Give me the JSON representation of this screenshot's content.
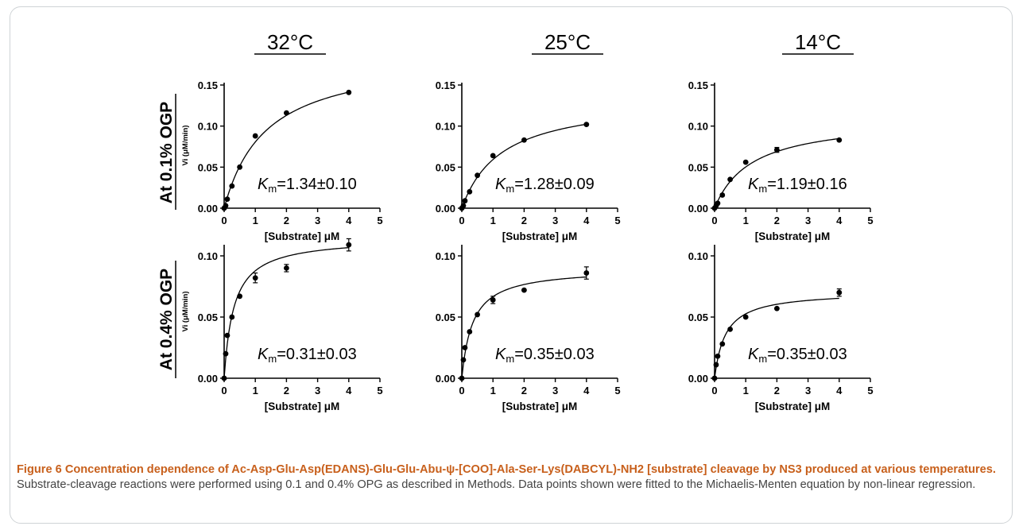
{
  "figure": {
    "column_headers": [
      "32°C",
      "25°C",
      "14°C"
    ],
    "row_labels": [
      "At 0.1% OGP",
      "At 0.4% OGP"
    ],
    "caption_bold": "Figure 6 Concentration dependence of Ac-Asp-Glu-Asp(EDANS)-Glu-Glu-Abu-ψ-[COO]-Ala-Ser-Lys(DABCYL)-NH2 [substrate] cleavage by NS3 produced at various temperatures.",
    "caption_text": " Substrate-cleavage reactions were performed using 0.1 and 0.4% OPG as described in Methods. Data points shown were fitted to the Michaelis-Menten equation by non-linear regression."
  },
  "chart_data": [
    {
      "type": "scatter",
      "row": 0,
      "col": 0,
      "xlabel": "[Substrate] μM",
      "ylabel": "Vi (μM/min)",
      "xlim": [
        0,
        5
      ],
      "ylim": [
        0,
        0.15
      ],
      "xticks": [
        "0",
        "1",
        "2",
        "3",
        "4",
        "5"
      ],
      "yticks": [
        "0.00",
        "0.05",
        "0.10",
        "0.15"
      ],
      "points": [
        {
          "x": 0,
          "y": 0.0
        },
        {
          "x": 0.05,
          "y": 0.003
        },
        {
          "x": 0.1,
          "y": 0.011
        },
        {
          "x": 0.25,
          "y": 0.027
        },
        {
          "x": 0.5,
          "y": 0.05
        },
        {
          "x": 1,
          "y": 0.088
        },
        {
          "x": 2,
          "y": 0.116
        },
        {
          "x": 4,
          "y": 0.141
        }
      ],
      "fit": {
        "vmax": 0.1887,
        "km": 1.34
      },
      "annotation": {
        "prefix": "K",
        "sub": "m",
        "value": "=1.34±0.10"
      }
    },
    {
      "type": "scatter",
      "row": 0,
      "col": 1,
      "xlabel": "[Substrate] μM",
      "ylabel": "",
      "xlim": [
        0,
        5
      ],
      "ylim": [
        0,
        0.15
      ],
      "xticks": [
        "0",
        "1",
        "2",
        "3",
        "4",
        "5"
      ],
      "yticks": [
        "0.00",
        "0.05",
        "0.10",
        "0.15"
      ],
      "points": [
        {
          "x": 0,
          "y": 0.0
        },
        {
          "x": 0.05,
          "y": 0.003
        },
        {
          "x": 0.1,
          "y": 0.009
        },
        {
          "x": 0.25,
          "y": 0.02
        },
        {
          "x": 0.5,
          "y": 0.04
        },
        {
          "x": 1,
          "y": 0.064
        },
        {
          "x": 2,
          "y": 0.083
        },
        {
          "x": 4,
          "y": 0.102
        }
      ],
      "fit": {
        "vmax": 0.135,
        "km": 1.28
      },
      "annotation": {
        "prefix": "K",
        "sub": "m",
        "value": "=1.28±0.09"
      }
    },
    {
      "type": "scatter",
      "row": 0,
      "col": 2,
      "xlabel": "[Substrate] μM",
      "ylabel": "",
      "xlim": [
        0,
        5
      ],
      "ylim": [
        0,
        0.15
      ],
      "xticks": [
        "0",
        "1",
        "2",
        "3",
        "4",
        "5"
      ],
      "yticks": [
        "0.00",
        "0.05",
        "0.10",
        "0.15"
      ],
      "points": [
        {
          "x": 0,
          "y": 0.0
        },
        {
          "x": 0.05,
          "y": 0.003
        },
        {
          "x": 0.1,
          "y": 0.006
        },
        {
          "x": 0.25,
          "y": 0.016
        },
        {
          "x": 0.5,
          "y": 0.035
        },
        {
          "x": 1,
          "y": 0.056
        },
        {
          "x": 2,
          "y": 0.071,
          "err": 0.003
        },
        {
          "x": 4,
          "y": 0.083
        }
      ],
      "fit": {
        "vmax": 0.11,
        "km": 1.19
      },
      "annotation": {
        "prefix": "K",
        "sub": "m",
        "value": "=1.19±0.16"
      }
    },
    {
      "type": "scatter",
      "row": 1,
      "col": 0,
      "xlabel": "[Substrate] μM",
      "ylabel": "Vi (μM/min)",
      "xlim": [
        0,
        5
      ],
      "ylim": [
        0,
        0.12
      ],
      "xticks": [
        "0",
        "1",
        "2",
        "3",
        "4",
        "5"
      ],
      "yticks": [
        "0.00",
        "0.05",
        "0.10"
      ],
      "points": [
        {
          "x": 0,
          "y": 0.0
        },
        {
          "x": 0.05,
          "y": 0.02
        },
        {
          "x": 0.1,
          "y": 0.035
        },
        {
          "x": 0.25,
          "y": 0.05
        },
        {
          "x": 0.5,
          "y": 0.067
        },
        {
          "x": 1,
          "y": 0.082,
          "err": 0.004
        },
        {
          "x": 2,
          "y": 0.09,
          "err": 0.003
        },
        {
          "x": 4,
          "y": 0.109,
          "err": 0.005
        }
      ],
      "fit": {
        "vmax": 0.115,
        "km": 0.31
      },
      "annotation": {
        "prefix": "K",
        "sub": "m",
        "value": "=0.31±0.03"
      }
    },
    {
      "type": "scatter",
      "row": 1,
      "col": 1,
      "xlabel": "[Substrate] μM",
      "ylabel": "",
      "xlim": [
        0,
        5
      ],
      "ylim": [
        0,
        0.12
      ],
      "xticks": [
        "0",
        "1",
        "2",
        "3",
        "4",
        "5"
      ],
      "yticks": [
        "0.00",
        "0.05",
        "0.10"
      ],
      "points": [
        {
          "x": 0,
          "y": 0.0
        },
        {
          "x": 0.05,
          "y": 0.015
        },
        {
          "x": 0.1,
          "y": 0.025
        },
        {
          "x": 0.25,
          "y": 0.038
        },
        {
          "x": 0.5,
          "y": 0.052
        },
        {
          "x": 1,
          "y": 0.064,
          "err": 0.003
        },
        {
          "x": 2,
          "y": 0.072
        },
        {
          "x": 4,
          "y": 0.086,
          "err": 0.005
        }
      ],
      "fit": {
        "vmax": 0.09,
        "km": 0.35
      },
      "annotation": {
        "prefix": "K",
        "sub": "m",
        "value": "=0.35±0.03"
      }
    },
    {
      "type": "scatter",
      "row": 1,
      "col": 2,
      "xlabel": "[Substrate] μM",
      "ylabel": "",
      "xlim": [
        0,
        5
      ],
      "ylim": [
        0,
        0.12
      ],
      "xticks": [
        "0",
        "1",
        "2",
        "3",
        "4",
        "5"
      ],
      "yticks": [
        "0.00",
        "0.05",
        "0.10"
      ],
      "points": [
        {
          "x": 0,
          "y": 0.0
        },
        {
          "x": 0.05,
          "y": 0.011
        },
        {
          "x": 0.1,
          "y": 0.018
        },
        {
          "x": 0.25,
          "y": 0.028
        },
        {
          "x": 0.5,
          "y": 0.04
        },
        {
          "x": 1,
          "y": 0.05
        },
        {
          "x": 2,
          "y": 0.057
        },
        {
          "x": 4,
          "y": 0.07,
          "err": 0.003
        }
      ],
      "fit": {
        "vmax": 0.071,
        "km": 0.35
      },
      "annotation": {
        "prefix": "K",
        "sub": "m",
        "value": "=0.35±0.03"
      }
    }
  ]
}
